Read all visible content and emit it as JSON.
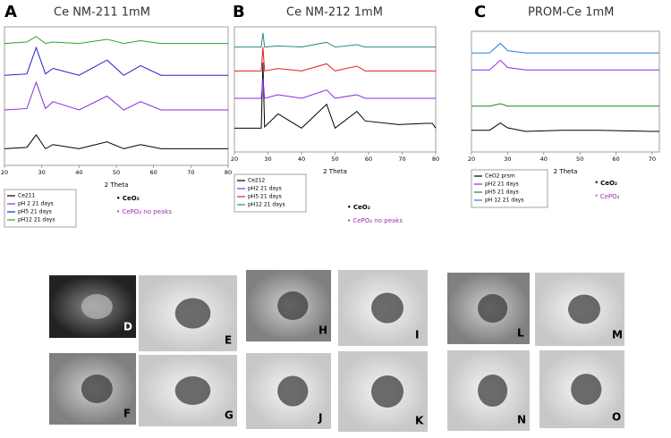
{
  "chart_data": [
    {
      "type": "line",
      "panel": "A",
      "title": "Ce NM-211 1mM",
      "x_label": "2 Theta",
      "xlim": [
        20,
        80
      ],
      "xticks": [
        20,
        30,
        40,
        50,
        60,
        70,
        80
      ],
      "ylim": [
        0,
        100
      ],
      "x": [
        20,
        26,
        28.5,
        31,
        33,
        40,
        47.5,
        52,
        56.5,
        62,
        70,
        80
      ],
      "series": [
        {
          "name": "Ce211",
          "color": "#000000",
          "values": [
            12,
            13,
            22,
            12,
            15,
            12,
            17,
            12,
            15,
            12,
            12,
            12
          ]
        },
        {
          "name": "pH 2 21 days",
          "color": "#8a2be2",
          "values": [
            40,
            41,
            60,
            41,
            46,
            40,
            50,
            40,
            46,
            40,
            40,
            40
          ]
        },
        {
          "name": "pH5 21 days",
          "color": "#1f1fc8",
          "values": [
            65,
            66,
            85,
            66,
            70,
            65,
            76,
            65,
            72,
            65,
            65,
            65
          ]
        },
        {
          "name": "pH12 21 days",
          "color": "#2ca02c",
          "values": [
            88,
            89,
            93,
            88,
            89,
            88,
            91,
            88,
            90,
            88,
            88,
            88
          ]
        }
      ],
      "annotations": [
        "• CeO₂",
        "• CePO₄  no peaks"
      ]
    },
    {
      "type": "line",
      "panel": "B",
      "title": "Ce NM-212 1mM",
      "x_label": "2 Theta",
      "xlim": [
        20,
        80
      ],
      "xticks": [
        20,
        30,
        40,
        50,
        60,
        70,
        80
      ],
      "ylim": [
        0,
        105
      ],
      "x": [
        20,
        28,
        28.5,
        29,
        33,
        40,
        47.5,
        50,
        56.5,
        59,
        69,
        77,
        79,
        80
      ],
      "series": [
        {
          "name": "Ce212",
          "color": "#000000",
          "values": [
            20,
            20,
            75,
            21,
            32,
            20,
            40,
            20,
            34,
            26,
            23,
            24,
            24,
            20
          ]
        },
        {
          "name": "pH2 21 days",
          "color": "#8a2be2",
          "values": [
            45,
            45,
            62,
            45,
            48,
            45,
            52,
            45,
            48,
            45,
            45,
            45,
            45,
            45
          ]
        },
        {
          "name": "pH5 21 days",
          "color": "#e02020",
          "values": [
            68,
            68,
            88,
            68,
            70,
            68,
            74,
            68,
            72,
            68,
            68,
            68,
            68,
            68
          ]
        },
        {
          "name": "pH12 21 days",
          "color": "#2a8a8a",
          "values": [
            88,
            88,
            100,
            88,
            89,
            88,
            92,
            88,
            90,
            88,
            88,
            88,
            88,
            88
          ]
        }
      ],
      "annotations": [
        "• CeO₂",
        "• CePO₄ no peaks"
      ]
    },
    {
      "type": "line",
      "panel": "C",
      "title": "PROM-Ce 1mM",
      "x_label": "2 Theta",
      "xlim": [
        20,
        72
      ],
      "xticks": [
        20,
        30,
        40,
        50,
        60,
        70
      ],
      "ylim": [
        0,
        100
      ],
      "x": [
        20,
        25,
        28,
        30,
        35,
        45,
        55,
        70,
        72
      ],
      "series": [
        {
          "name": "CeO2 prsm",
          "color": "#000000",
          "values": [
            18,
            18,
            24,
            20,
            17,
            18,
            18,
            17,
            17
          ]
        },
        {
          "name": "pH2 21 days",
          "color": "#8a2be2",
          "values": [
            68,
            68,
            76,
            70,
            68,
            68,
            68,
            68,
            68
          ]
        },
        {
          "name": "pH5 21 days",
          "color": "#1a8a1a",
          "values": [
            38,
            38,
            40,
            38,
            38,
            38,
            38,
            38,
            38
          ]
        },
        {
          "name": "pH 12 21 days",
          "color": "#2080e0",
          "values": [
            82,
            82,
            90,
            84,
            82,
            82,
            82,
            82,
            82
          ]
        }
      ],
      "annotations": [
        "* CeO₂",
        "* CePO₄"
      ]
    }
  ],
  "tem_panels": [
    "D",
    "E",
    "F",
    "G",
    "H",
    "I",
    "J",
    "K",
    "L",
    "M",
    "N",
    "O"
  ]
}
